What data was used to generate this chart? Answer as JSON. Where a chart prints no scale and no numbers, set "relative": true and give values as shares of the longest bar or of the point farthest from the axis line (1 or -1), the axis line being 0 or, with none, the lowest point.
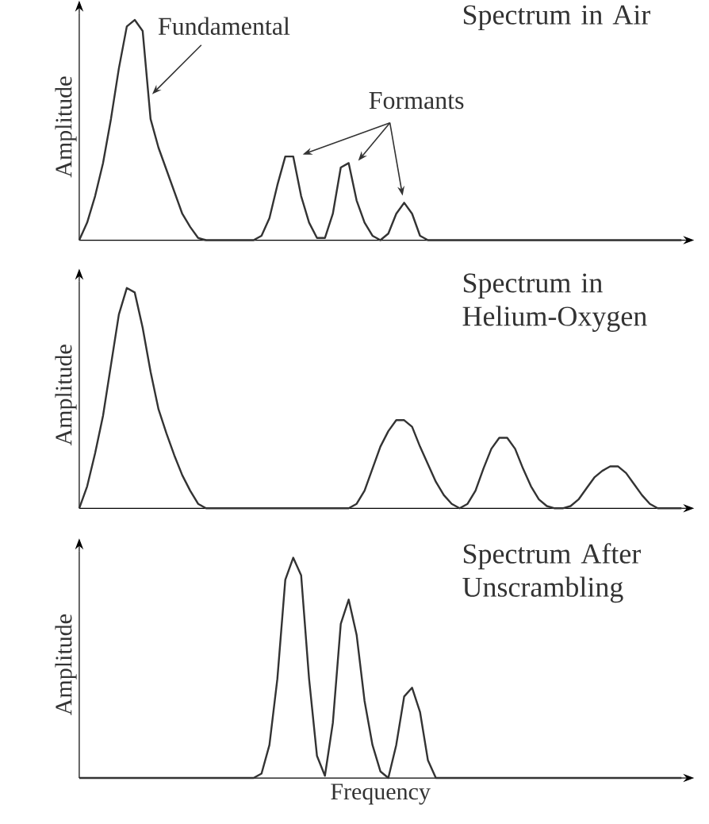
{
  "chart_data": [
    {
      "type": "line",
      "title": "Spectrum in Air",
      "ylabel": "Amplitude",
      "relative": true,
      "color": "#333333",
      "annotations": [
        "Fundamental",
        "Formants"
      ],
      "categories": [
        null,
        null,
        null,
        null,
        null,
        null,
        null,
        null,
        null,
        null,
        null,
        null,
        null,
        null,
        null,
        null,
        null,
        null,
        null,
        null,
        null,
        null,
        null,
        null,
        null,
        null,
        null,
        null,
        null,
        null,
        null,
        null,
        null,
        null,
        null,
        null,
        null,
        null,
        null,
        null,
        null,
        null,
        null,
        null,
        null,
        null,
        null,
        null,
        null,
        null,
        null,
        null,
        null,
        null,
        null,
        null,
        null,
        null,
        null,
        null,
        null,
        null,
        null,
        null,
        null,
        null,
        null,
        null,
        null,
        null,
        null,
        null,
        null,
        null,
        null,
        null,
        null
      ],
      "values": [
        0,
        0.08,
        0.2,
        0.35,
        0.55,
        0.78,
        0.97,
        1.0,
        0.95,
        0.55,
        0.42,
        0.32,
        0.22,
        0.12,
        0.06,
        0.01,
        0,
        0,
        0,
        0,
        0,
        0,
        0,
        0.02,
        0.1,
        0.25,
        0.38,
        0.38,
        0.2,
        0.08,
        0.01,
        0.01,
        0.12,
        0.33,
        0.35,
        0.18,
        0.08,
        0.02,
        0,
        0.03,
        0.12,
        0.17,
        0.12,
        0.02,
        0,
        0,
        0,
        0,
        0,
        0,
        0,
        0,
        0,
        0,
        0,
        0,
        0,
        0,
        0,
        0,
        0,
        0,
        0,
        0,
        0,
        0,
        0,
        0,
        0,
        0,
        0,
        0,
        0,
        0,
        0,
        0,
        0
      ]
    },
    {
      "type": "line",
      "title": "Spectrum in Helium-Oxygen",
      "ylabel": "Amplitude",
      "relative": true,
      "color": "#333333",
      "categories": [
        null,
        null,
        null,
        null,
        null,
        null,
        null,
        null,
        null,
        null,
        null,
        null,
        null,
        null,
        null,
        null,
        null,
        null,
        null,
        null,
        null,
        null,
        null,
        null,
        null,
        null,
        null,
        null,
        null,
        null,
        null,
        null,
        null,
        null,
        null,
        null,
        null,
        null,
        null,
        null,
        null,
        null,
        null,
        null,
        null,
        null,
        null,
        null,
        null,
        null,
        null,
        null,
        null,
        null,
        null,
        null,
        null,
        null,
        null,
        null,
        null,
        null,
        null,
        null,
        null,
        null,
        null,
        null,
        null,
        null,
        null,
        null,
        null,
        null,
        null,
        null,
        null
      ],
      "values": [
        0,
        0.1,
        0.25,
        0.42,
        0.65,
        0.88,
        1.0,
        0.98,
        0.82,
        0.62,
        0.45,
        0.34,
        0.24,
        0.15,
        0.08,
        0.02,
        0,
        0,
        0,
        0,
        0,
        0,
        0,
        0,
        0,
        0,
        0,
        0,
        0,
        0,
        0,
        0,
        0,
        0,
        0,
        0.02,
        0.08,
        0.18,
        0.28,
        0.35,
        0.4,
        0.4,
        0.37,
        0.28,
        0.2,
        0.12,
        0.06,
        0.02,
        0,
        0.02,
        0.08,
        0.18,
        0.27,
        0.32,
        0.32,
        0.27,
        0.18,
        0.1,
        0.04,
        0.01,
        0,
        0,
        0.01,
        0.04,
        0.09,
        0.14,
        0.17,
        0.19,
        0.19,
        0.16,
        0.11,
        0.06,
        0.02,
        0,
        0,
        0,
        0
      ]
    },
    {
      "type": "line",
      "title": "Spectrum After Unscrambling",
      "xlabel": "Frequency",
      "ylabel": "Amplitude",
      "relative": true,
      "color": "#333333",
      "categories": [
        null,
        null,
        null,
        null,
        null,
        null,
        null,
        null,
        null,
        null,
        null,
        null,
        null,
        null,
        null,
        null,
        null,
        null,
        null,
        null,
        null,
        null,
        null,
        null,
        null,
        null,
        null,
        null,
        null,
        null,
        null,
        null,
        null,
        null,
        null,
        null,
        null,
        null,
        null,
        null,
        null,
        null,
        null,
        null,
        null,
        null,
        null,
        null,
        null,
        null,
        null,
        null,
        null,
        null,
        null,
        null,
        null,
        null,
        null,
        null,
        null,
        null,
        null,
        null,
        null,
        null,
        null,
        null,
        null,
        null,
        null,
        null,
        null,
        null,
        null,
        null,
        null
      ],
      "values": [
        0,
        0,
        0,
        0,
        0,
        0,
        0,
        0,
        0,
        0,
        0,
        0,
        0,
        0,
        0,
        0,
        0,
        0,
        0,
        0,
        0,
        0,
        0,
        0.02,
        0.15,
        0.45,
        0.9,
        1.0,
        0.92,
        0.45,
        0.1,
        0.01,
        0.25,
        0.7,
        0.81,
        0.65,
        0.35,
        0.15,
        0.03,
        0,
        0.15,
        0.37,
        0.41,
        0.3,
        0.08,
        0,
        0,
        0,
        0,
        0,
        0,
        0,
        0,
        0,
        0,
        0,
        0,
        0,
        0,
        0,
        0,
        0,
        0,
        0,
        0,
        0,
        0,
        0,
        0,
        0,
        0,
        0,
        0,
        0,
        0,
        0,
        0
      ]
    }
  ]
}
